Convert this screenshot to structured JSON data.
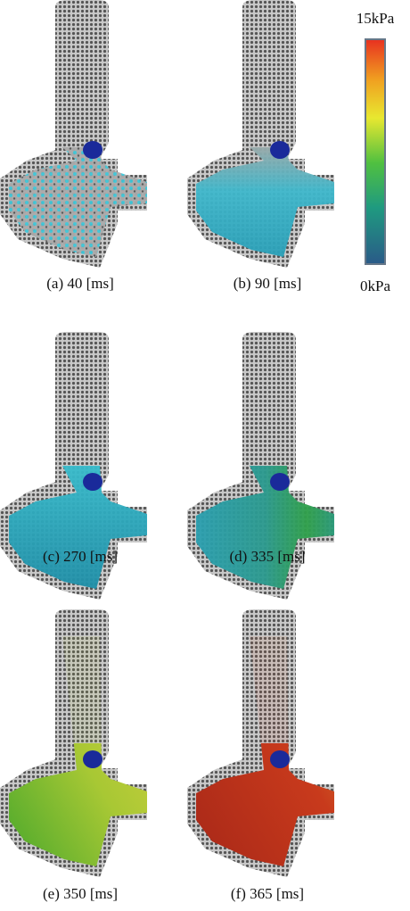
{
  "colorbar": {
    "max_label": "15kPa",
    "min_label": "0kPa"
  },
  "panels": [
    {
      "caption": "(a)  40 [ms]"
    },
    {
      "caption": "(b)  90 [ms]"
    },
    {
      "caption": "(c)  270 [ms]"
    },
    {
      "caption": "(d)  335 [ms]"
    },
    {
      "caption": "(e)  350 [ms]"
    },
    {
      "caption": "(f)  365 [ms]"
    }
  ]
}
